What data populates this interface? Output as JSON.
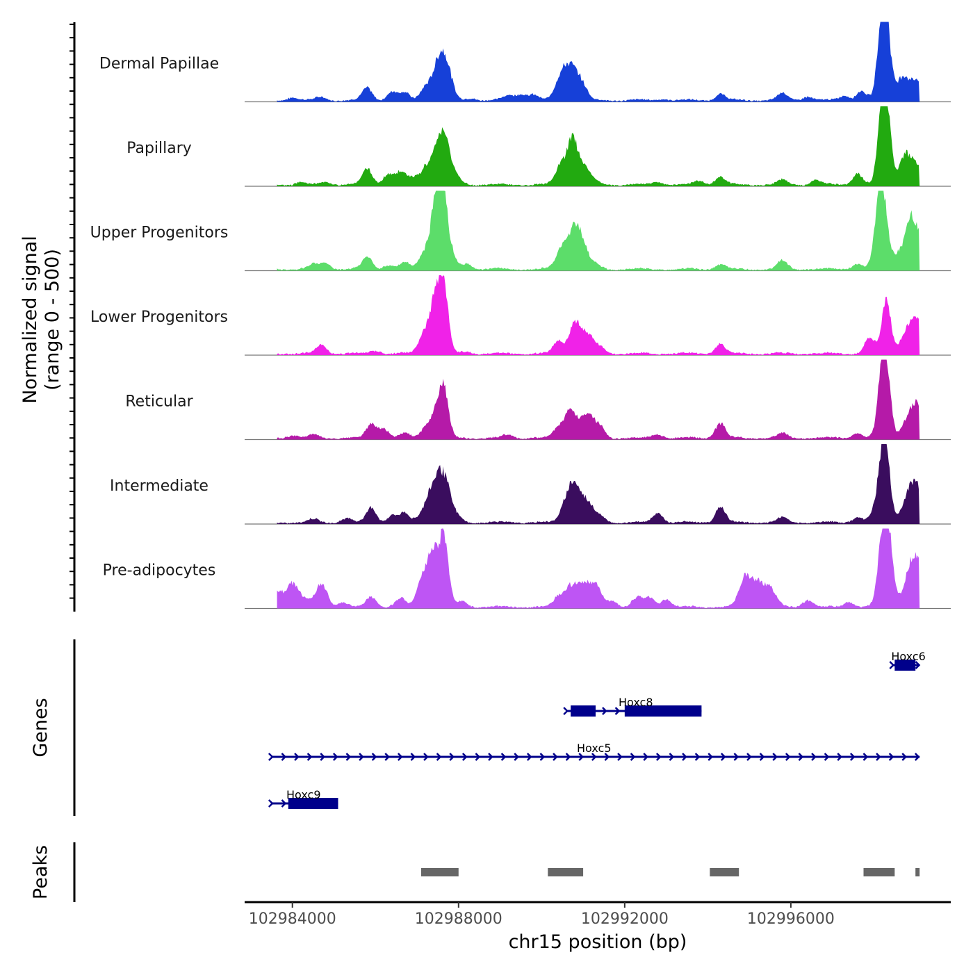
{
  "chart_data": {
    "type": "area",
    "title": "",
    "region": {
      "chromosome": "chr15",
      "start": 102982850,
      "end": 102999850
    },
    "signal_range": [
      0,
      500
    ],
    "ylabel_line1": "Normalized signal",
    "ylabel_line2": "(range 0 - 500)",
    "xlabel": "chr15 position (bp)",
    "x_ticks": [
      102984000,
      102988000,
      102992000,
      102996000
    ],
    "x_tick_labels": [
      "102984000",
      "102988000",
      "102992000",
      "102996000"
    ],
    "genes_label": "Genes",
    "peaks_label": "Peaks",
    "tracks": [
      {
        "name": "Dermal Papillae",
        "color": "#1640D8",
        "peaks": [
          [
            102984000,
            40
          ],
          [
            102984700,
            40
          ],
          [
            102985800,
            150
          ],
          [
            102986400,
            110
          ],
          [
            102986700,
            90
          ],
          [
            102987200,
            160
          ],
          [
            102987500,
            400
          ],
          [
            102987700,
            410
          ],
          [
            102988300,
            30
          ],
          [
            102989200,
            60
          ],
          [
            102989500,
            80
          ],
          [
            102989800,
            70
          ],
          [
            102990400,
            170
          ],
          [
            102990600,
            330
          ],
          [
            102990800,
            260
          ],
          [
            102991000,
            130
          ],
          [
            102992900,
            20
          ],
          [
            102994300,
            80
          ],
          [
            102995800,
            90
          ],
          [
            102996400,
            50
          ],
          [
            102997300,
            60
          ],
          [
            102997700,
            120
          ],
          [
            102998200,
            900
          ],
          [
            102998300,
            700
          ],
          [
            102998600,
            120
          ],
          [
            102998750,
            230
          ],
          [
            102999050,
            230
          ]
        ]
      },
      {
        "name": "Papillary",
        "color": "#22AA10",
        "peaks": [
          [
            102984200,
            30
          ],
          [
            102984800,
            40
          ],
          [
            102985800,
            200
          ],
          [
            102986300,
            130
          ],
          [
            102986600,
            150
          ],
          [
            102986900,
            90
          ],
          [
            102987200,
            200
          ],
          [
            102987500,
            430
          ],
          [
            102987700,
            420
          ],
          [
            102988000,
            60
          ],
          [
            102990500,
            280
          ],
          [
            102990750,
            520
          ],
          [
            102991000,
            230
          ],
          [
            102991300,
            40
          ],
          [
            102992800,
            40
          ],
          [
            102993800,
            50
          ],
          [
            102994300,
            100
          ],
          [
            102995800,
            60
          ],
          [
            102996600,
            60
          ],
          [
            102997600,
            140
          ],
          [
            102998200,
            750
          ],
          [
            102998300,
            800
          ],
          [
            102998700,
            150
          ],
          [
            102998800,
            270
          ],
          [
            102999050,
            200
          ]
        ]
      },
      {
        "name": "Upper Progenitors",
        "color": "#5CDD6A",
        "peaks": [
          [
            102984500,
            60
          ],
          [
            102984800,
            80
          ],
          [
            102985800,
            150
          ],
          [
            102986300,
            50
          ],
          [
            102986700,
            80
          ],
          [
            102987200,
            230
          ],
          [
            102987450,
            720
          ],
          [
            102987600,
            790
          ],
          [
            102987750,
            280
          ],
          [
            102988200,
            70
          ],
          [
            102990500,
            280
          ],
          [
            102990800,
            480
          ],
          [
            102991000,
            210
          ],
          [
            102991300,
            60
          ],
          [
            102994300,
            60
          ],
          [
            102995800,
            100
          ],
          [
            102997600,
            70
          ],
          [
            102998100,
            600
          ],
          [
            102998250,
            700
          ],
          [
            102998600,
            200
          ],
          [
            102998850,
            550
          ],
          [
            102999100,
            470
          ]
        ]
      },
      {
        "name": "Lower Progenitors",
        "color": "#F022E8",
        "peaks": [
          [
            102984700,
            110
          ],
          [
            102986000,
            40
          ],
          [
            102987200,
            300
          ],
          [
            102987450,
            680
          ],
          [
            102987650,
            770
          ],
          [
            102988200,
            30
          ],
          [
            102990400,
            150
          ],
          [
            102990800,
            380
          ],
          [
            102991100,
            220
          ],
          [
            102991400,
            80
          ],
          [
            102994300,
            120
          ],
          [
            102997900,
            200
          ],
          [
            102998300,
            650
          ],
          [
            102998700,
            140
          ],
          [
            102998900,
            290
          ],
          [
            102999100,
            270
          ]
        ]
      },
      {
        "name": "Reticular",
        "color": "#B51AA8",
        "peaks": [
          [
            102984000,
            40
          ],
          [
            102984500,
            40
          ],
          [
            102985900,
            170
          ],
          [
            102986200,
            120
          ],
          [
            102986700,
            60
          ],
          [
            102987200,
            110
          ],
          [
            102987450,
            300
          ],
          [
            102987650,
            560
          ],
          [
            102989200,
            40
          ],
          [
            102990400,
            120
          ],
          [
            102990700,
            380
          ],
          [
            102991100,
            310
          ],
          [
            102991400,
            140
          ],
          [
            102992800,
            50
          ],
          [
            102994300,
            190
          ],
          [
            102995800,
            60
          ],
          [
            102997600,
            60
          ],
          [
            102998200,
            650
          ],
          [
            102998300,
            670
          ],
          [
            102998700,
            70
          ],
          [
            102998900,
            280
          ],
          [
            102999100,
            270
          ]
        ]
      },
      {
        "name": "Intermediate",
        "color": "#3A0D5E",
        "peaks": [
          [
            102984500,
            40
          ],
          [
            102985300,
            50
          ],
          [
            102985900,
            190
          ],
          [
            102986400,
            90
          ],
          [
            102986700,
            110
          ],
          [
            102987100,
            60
          ],
          [
            102987300,
            240
          ],
          [
            102987500,
            410
          ],
          [
            102987700,
            400
          ],
          [
            102988000,
            50
          ],
          [
            102990600,
            230
          ],
          [
            102990800,
            420
          ],
          [
            102991100,
            240
          ],
          [
            102991400,
            80
          ],
          [
            102992800,
            120
          ],
          [
            102994300,
            190
          ],
          [
            102995800,
            60
          ],
          [
            102997600,
            70
          ],
          [
            102998000,
            100
          ],
          [
            102998200,
            600
          ],
          [
            102998300,
            610
          ],
          [
            102998700,
            110
          ],
          [
            102998900,
            360
          ],
          [
            102999100,
            300
          ]
        ]
      },
      {
        "name": "Pre-adipocytes",
        "color": "#BE55F4",
        "peaks": [
          [
            102983650,
            190
          ],
          [
            102984000,
            300
          ],
          [
            102984300,
            80
          ],
          [
            102984700,
            280
          ],
          [
            102985200,
            60
          ],
          [
            102985900,
            130
          ],
          [
            102986600,
            110
          ],
          [
            102987100,
            170
          ],
          [
            102987200,
            290
          ],
          [
            102987400,
            620
          ],
          [
            102987650,
            880
          ],
          [
            102988100,
            70
          ],
          [
            102990400,
            120
          ],
          [
            102990700,
            260
          ],
          [
            102991000,
            250
          ],
          [
            102991300,
            260
          ],
          [
            102991700,
            80
          ],
          [
            102992300,
            110
          ],
          [
            102992600,
            120
          ],
          [
            102993000,
            100
          ],
          [
            102994900,
            370
          ],
          [
            102995200,
            300
          ],
          [
            102995500,
            230
          ],
          [
            102996400,
            90
          ],
          [
            102997400,
            70
          ],
          [
            102998200,
            730
          ],
          [
            102998350,
            820
          ],
          [
            102998700,
            90
          ],
          [
            102998900,
            430
          ],
          [
            102999100,
            400
          ]
        ]
      }
    ],
    "genes": [
      {
        "name": "Hoxc6",
        "strand": "+",
        "start": 102998450,
        "end": 102999100,
        "exons": [
          [
            102998500,
            102999000
          ]
        ],
        "row": 1
      },
      {
        "name": "Hoxc8",
        "strand": "+",
        "start": 102990600,
        "end": 102993850,
        "exons": [
          [
            102990700,
            102991300
          ],
          [
            102992000,
            102993850
          ]
        ],
        "row": 2
      },
      {
        "name": "Hoxc5",
        "strand": "+",
        "start": 102983500,
        "end": 102999100,
        "exons": [],
        "row": 3
      },
      {
        "name": "Hoxc9",
        "strand": "+",
        "start": 102983500,
        "end": 102985100,
        "exons": [
          [
            102983900,
            102985100
          ]
        ],
        "row": 4
      }
    ],
    "peaks": [
      [
        102987100,
        102988000
      ],
      [
        102990150,
        102991000
      ],
      [
        102994050,
        102994750
      ],
      [
        102997750,
        102998500
      ],
      [
        102999000,
        102999100
      ]
    ]
  }
}
